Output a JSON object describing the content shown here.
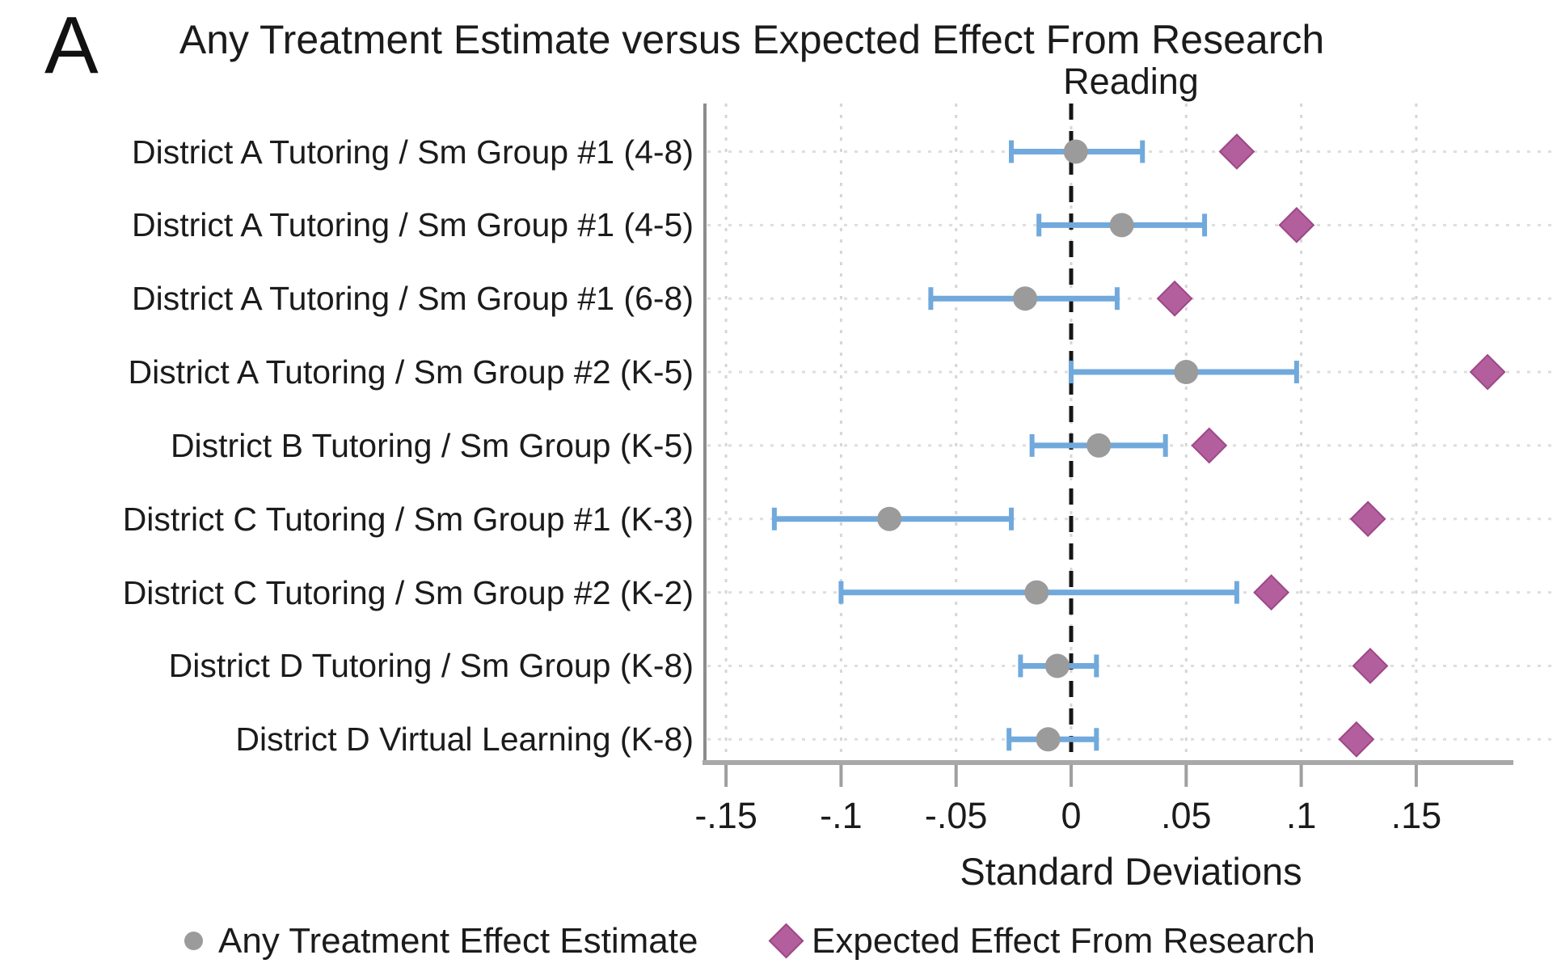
{
  "panel_label": "A",
  "colors": {
    "ci_bar": "#71a9dc",
    "estimate_marker": "#9b9b9b",
    "expected_marker": "#b35f9d",
    "expected_marker_edge": "#9d4787",
    "zero_line": "#161616",
    "axis_line": "#a8a8a8",
    "left_axis_line": "#8c8c8c",
    "tick_mark": "#9f9f9f",
    "gridline": "#d6d6d6",
    "leader_line": "#dedede",
    "text": "#1b1b1b"
  },
  "chart_data": {
    "type": "scatter",
    "variant": "forest-plot",
    "title": "Any Treatment Estimate versus Expected Effect From Research",
    "subtitle": "Reading",
    "xlabel": "Standard Deviations",
    "xlim": [
      -0.16,
      0.211
    ],
    "x_ticks": [
      -0.15,
      -0.1,
      -0.05,
      0,
      0.05,
      0.1,
      0.15
    ],
    "x_tick_labels": [
      "-.15",
      "-.1",
      "-.05",
      "0",
      ".05",
      ".1",
      ".15"
    ],
    "grid": "dotted vertical gridlines at each tick, dotted horizontal leader line per row, dashed vertical reference line at 0",
    "legend_position": "bottom",
    "series": [
      {
        "name": "Any Treatment Effect Estimate",
        "marker": "circle",
        "color": "#9b9b9b"
      },
      {
        "name": "Expected Effect From Research",
        "marker": "diamond",
        "color": "#b35f9d"
      }
    ],
    "rows": [
      {
        "label": "District A Tutoring / Sm Group #1 (4-8)",
        "estimate": 0.002,
        "ci_low": -0.026,
        "ci_high": 0.031,
        "expected": 0.072
      },
      {
        "label": "District A Tutoring / Sm Group #1 (4-5)",
        "estimate": 0.022,
        "ci_low": -0.014,
        "ci_high": 0.058,
        "expected": 0.098
      },
      {
        "label": "District A Tutoring / Sm Group #1 (6-8)",
        "estimate": -0.02,
        "ci_low": -0.061,
        "ci_high": 0.02,
        "expected": 0.045
      },
      {
        "label": "District A Tutoring / Sm Group #2 (K-5)",
        "estimate": 0.05,
        "ci_low": 0.0,
        "ci_high": 0.098,
        "expected": 0.181
      },
      {
        "label": "District B Tutoring / Sm Group (K-5)",
        "estimate": 0.012,
        "ci_low": -0.017,
        "ci_high": 0.041,
        "expected": 0.06
      },
      {
        "label": "District C Tutoring / Sm Group #1 (K-3)",
        "estimate": -0.079,
        "ci_low": -0.129,
        "ci_high": -0.026,
        "expected": 0.129
      },
      {
        "label": "District C Tutoring / Sm Group #2 (K-2)",
        "estimate": -0.015,
        "ci_low": -0.1,
        "ci_high": 0.072,
        "expected": 0.087
      },
      {
        "label": "District D Tutoring / Sm Group (K-8)",
        "estimate": -0.006,
        "ci_low": -0.022,
        "ci_high": 0.011,
        "expected": 0.13
      },
      {
        "label": "District D Virtual Learning (K-8)",
        "estimate": -0.01,
        "ci_low": -0.027,
        "ci_high": 0.011,
        "expected": 0.124
      }
    ]
  }
}
